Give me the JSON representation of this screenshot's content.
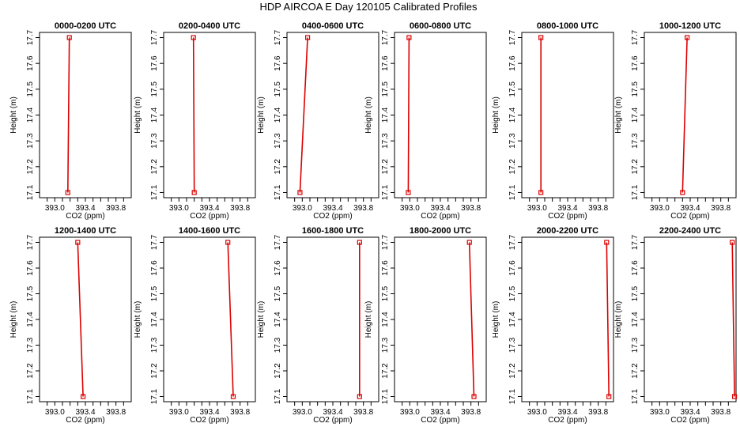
{
  "figure_title": "HDP AIRCOA E  Day 120105  Calibrated Profiles",
  "chart_data": [
    {
      "type": "line",
      "title": "0000-0200 UTC",
      "xlabel": "CO2 (ppm)",
      "ylabel": "Height (m)",
      "x": [
        393.19,
        393.17
      ],
      "y": [
        17.7,
        17.1
      ],
      "xlim": [
        392.8,
        394.0
      ],
      "ylim": [
        17.08,
        17.72
      ],
      "xticks": [
        "393.0",
        "393.4",
        "393.8"
      ],
      "yticks": [
        "17.1",
        "17.2",
        "17.3",
        "17.4",
        "17.5",
        "17.6",
        "17.7"
      ]
    },
    {
      "type": "line",
      "title": "0200-0400 UTC",
      "xlabel": "CO2 (ppm)",
      "ylabel": "Height (m)",
      "x": [
        393.19,
        393.2
      ],
      "y": [
        17.7,
        17.1
      ],
      "xlim": [
        392.8,
        394.0
      ],
      "ylim": [
        17.08,
        17.72
      ],
      "xticks": [
        "393.0",
        "393.4",
        "393.8"
      ],
      "yticks": [
        "17.1",
        "17.2",
        "17.3",
        "17.4",
        "17.5",
        "17.6",
        "17.7"
      ]
    },
    {
      "type": "line",
      "title": "0400-0600 UTC",
      "xlabel": "CO2 (ppm)",
      "ylabel": "Height (m)",
      "x": [
        393.07,
        392.97
      ],
      "y": [
        17.7,
        17.1
      ],
      "xlim": [
        392.8,
        394.0
      ],
      "ylim": [
        17.08,
        17.72
      ],
      "xticks": [
        "393.0",
        "393.4",
        "393.8"
      ],
      "yticks": [
        "17.1",
        "17.2",
        "17.3",
        "17.4",
        "17.5",
        "17.6",
        "17.7"
      ]
    },
    {
      "type": "line",
      "title": "0600-0800 UTC",
      "xlabel": "CO2 (ppm)",
      "ylabel": "Height (m)",
      "x": [
        392.99,
        392.98
      ],
      "y": [
        17.7,
        17.1
      ],
      "xlim": [
        392.8,
        394.0
      ],
      "ylim": [
        17.08,
        17.72
      ],
      "xticks": [
        "393.0",
        "393.4",
        "393.8"
      ],
      "yticks": [
        "17.1",
        "17.2",
        "17.3",
        "17.4",
        "17.5",
        "17.6",
        "17.7"
      ]
    },
    {
      "type": "line",
      "title": "0800-1000 UTC",
      "xlabel": "CO2 (ppm)",
      "ylabel": "Height (m)",
      "x": [
        393.05,
        393.05
      ],
      "y": [
        17.7,
        17.1
      ],
      "xlim": [
        392.8,
        394.0
      ],
      "ylim": [
        17.08,
        17.72
      ],
      "xticks": [
        "393.0",
        "393.4",
        "393.8"
      ],
      "yticks": [
        "17.1",
        "17.2",
        "17.3",
        "17.4",
        "17.5",
        "17.6",
        "17.7"
      ]
    },
    {
      "type": "line",
      "title": "1000-1200 UTC",
      "xlabel": "CO2 (ppm)",
      "ylabel": "Height (m)",
      "x": [
        393.36,
        393.3
      ],
      "y": [
        17.7,
        17.1
      ],
      "xlim": [
        392.8,
        394.0
      ],
      "ylim": [
        17.08,
        17.72
      ],
      "xticks": [
        "393.0",
        "393.4",
        "393.8"
      ],
      "yticks": [
        "17.1",
        "17.2",
        "17.3",
        "17.4",
        "17.5",
        "17.6",
        "17.7"
      ]
    },
    {
      "type": "line",
      "title": "1200-1400 UTC",
      "xlabel": "CO2 (ppm)",
      "ylabel": "Height (m)",
      "x": [
        393.3,
        393.37
      ],
      "y": [
        17.7,
        17.1
      ],
      "xlim": [
        392.8,
        394.0
      ],
      "ylim": [
        17.08,
        17.72
      ],
      "xticks": [
        "393.0",
        "393.4",
        "393.8"
      ],
      "yticks": [
        "17.1",
        "17.2",
        "17.3",
        "17.4",
        "17.5",
        "17.6",
        "17.7"
      ]
    },
    {
      "type": "line",
      "title": "1400-1600 UTC",
      "xlabel": "CO2 (ppm)",
      "ylabel": "Height (m)",
      "x": [
        393.64,
        393.71
      ],
      "y": [
        17.7,
        17.1
      ],
      "xlim": [
        392.8,
        394.0
      ],
      "ylim": [
        17.08,
        17.72
      ],
      "xticks": [
        "393.0",
        "393.4",
        "393.8"
      ],
      "yticks": [
        "17.1",
        "17.2",
        "17.3",
        "17.4",
        "17.5",
        "17.6",
        "17.7"
      ]
    },
    {
      "type": "line",
      "title": "1600-1800 UTC",
      "xlabel": "CO2 (ppm)",
      "ylabel": "Height (m)",
      "x": [
        393.75,
        393.75
      ],
      "y": [
        17.7,
        17.1
      ],
      "xlim": [
        392.8,
        394.0
      ],
      "ylim": [
        17.08,
        17.72
      ],
      "xticks": [
        "393.0",
        "393.4",
        "393.8"
      ],
      "yticks": [
        "17.1",
        "17.2",
        "17.3",
        "17.4",
        "17.5",
        "17.6",
        "17.7"
      ]
    },
    {
      "type": "line",
      "title": "1800-2000 UTC",
      "xlabel": "CO2 (ppm)",
      "ylabel": "Height (m)",
      "x": [
        393.78,
        393.84
      ],
      "y": [
        17.7,
        17.1
      ],
      "xlim": [
        392.8,
        394.0
      ],
      "ylim": [
        17.08,
        17.72
      ],
      "xticks": [
        "393.0",
        "393.4",
        "393.8"
      ],
      "yticks": [
        "17.1",
        "17.2",
        "17.3",
        "17.4",
        "17.5",
        "17.6",
        "17.7"
      ]
    },
    {
      "type": "line",
      "title": "2000-2200 UTC",
      "xlabel": "CO2 (ppm)",
      "ylabel": "Height (m)",
      "x": [
        393.91,
        393.94
      ],
      "y": [
        17.7,
        17.1
      ],
      "xlim": [
        392.8,
        394.0
      ],
      "ylim": [
        17.08,
        17.72
      ],
      "xticks": [
        "393.0",
        "393.4",
        "393.8"
      ],
      "yticks": [
        "17.1",
        "17.2",
        "17.3",
        "17.4",
        "17.5",
        "17.6",
        "17.7"
      ]
    },
    {
      "type": "line",
      "title": "2200-2400 UTC",
      "xlabel": "CO2 (ppm)",
      "ylabel": "Height (m)",
      "x": [
        393.95,
        393.98
      ],
      "y": [
        17.7,
        17.1
      ],
      "xlim": [
        392.8,
        394.0
      ],
      "ylim": [
        17.08,
        17.72
      ],
      "xticks": [
        "393.0",
        "393.4",
        "393.8"
      ],
      "yticks": [
        "17.1",
        "17.2",
        "17.3",
        "17.4",
        "17.5",
        "17.6",
        "17.7"
      ]
    }
  ],
  "colors": {
    "line": "#dd0000",
    "marker": "#dd0000",
    "axis": "#000000"
  }
}
